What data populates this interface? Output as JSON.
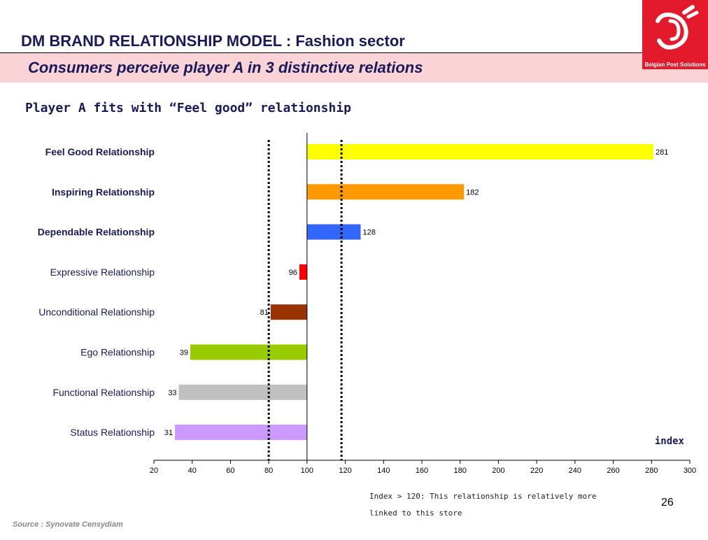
{
  "header": {
    "title": "DM BRAND RELATIONSHIP MODEL : Fashion sector",
    "subtitle": "Consumers perceive player A in 3 distinctive relations",
    "logo_text": "Belgian Post Solutions",
    "heading": "Player A fits with  “Feel good” relationship"
  },
  "chart_data": {
    "type": "bar",
    "orientation": "horizontal",
    "baseline": 100,
    "categories": [
      "Feel Good Relationship",
      "Inspiring Relationship",
      "Dependable Relationship",
      "Expressive Relationship",
      "Unconditional Relationship",
      "Ego Relationship",
      "Functional Relationship",
      "Status Relationship"
    ],
    "values": [
      281,
      182,
      128,
      96,
      81,
      39,
      33,
      31
    ],
    "bold_categories": [
      true,
      true,
      true,
      false,
      false,
      false,
      false,
      false
    ],
    "colors": [
      "#ffff00",
      "#ff9900",
      "#3366ff",
      "#ff0000",
      "#993300",
      "#99cc00",
      "#c0c0c0",
      "#cc99ff"
    ],
    "xlim": [
      20,
      300
    ],
    "xticks": [
      20,
      40,
      60,
      80,
      100,
      120,
      140,
      160,
      180,
      200,
      220,
      240,
      260,
      280,
      300
    ],
    "reference_lines": [
      80,
      118
    ],
    "xlabel": "index",
    "grid": false
  },
  "footer": {
    "note": "Index > 120: This relationship is relatively more linked to this store",
    "page_number": "26",
    "source": "Source : Synovate Censydiam"
  }
}
